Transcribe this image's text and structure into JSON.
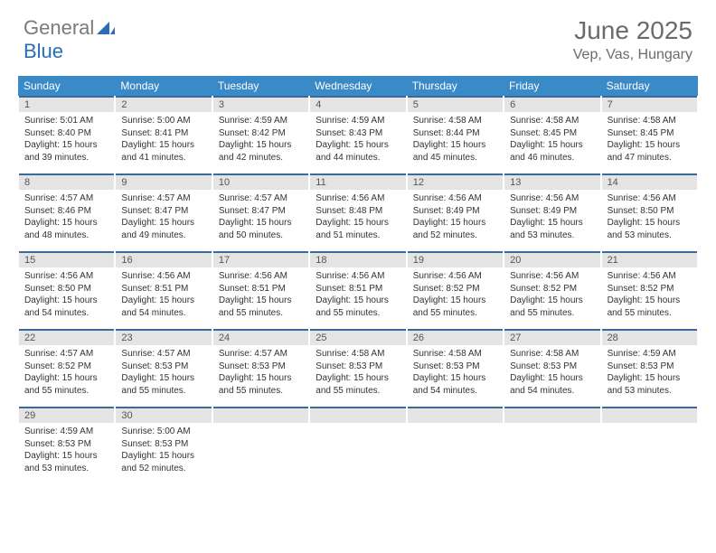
{
  "logo": {
    "text_gray": "General",
    "text_blue": "Blue",
    "shape_color": "#2a6db5"
  },
  "title": "June 2025",
  "location": "Vep, Vas, Hungary",
  "colors": {
    "header_bg": "#3a8ac8",
    "header_text": "#ffffff",
    "band_bg": "#e4e4e4",
    "band_border": "#3a6a9a",
    "daynum_color": "#555555",
    "cell_text": "#333333",
    "title_color": "#6b6b6b"
  },
  "day_headers": [
    "Sunday",
    "Monday",
    "Tuesday",
    "Wednesday",
    "Thursday",
    "Friday",
    "Saturday"
  ],
  "weeks": [
    [
      {
        "n": "1",
        "sr": "Sunrise: 5:01 AM",
        "ss": "Sunset: 8:40 PM",
        "dl": "Daylight: 15 hours and 39 minutes."
      },
      {
        "n": "2",
        "sr": "Sunrise: 5:00 AM",
        "ss": "Sunset: 8:41 PM",
        "dl": "Daylight: 15 hours and 41 minutes."
      },
      {
        "n": "3",
        "sr": "Sunrise: 4:59 AM",
        "ss": "Sunset: 8:42 PM",
        "dl": "Daylight: 15 hours and 42 minutes."
      },
      {
        "n": "4",
        "sr": "Sunrise: 4:59 AM",
        "ss": "Sunset: 8:43 PM",
        "dl": "Daylight: 15 hours and 44 minutes."
      },
      {
        "n": "5",
        "sr": "Sunrise: 4:58 AM",
        "ss": "Sunset: 8:44 PM",
        "dl": "Daylight: 15 hours and 45 minutes."
      },
      {
        "n": "6",
        "sr": "Sunrise: 4:58 AM",
        "ss": "Sunset: 8:45 PM",
        "dl": "Daylight: 15 hours and 46 minutes."
      },
      {
        "n": "7",
        "sr": "Sunrise: 4:58 AM",
        "ss": "Sunset: 8:45 PM",
        "dl": "Daylight: 15 hours and 47 minutes."
      }
    ],
    [
      {
        "n": "8",
        "sr": "Sunrise: 4:57 AM",
        "ss": "Sunset: 8:46 PM",
        "dl": "Daylight: 15 hours and 48 minutes."
      },
      {
        "n": "9",
        "sr": "Sunrise: 4:57 AM",
        "ss": "Sunset: 8:47 PM",
        "dl": "Daylight: 15 hours and 49 minutes."
      },
      {
        "n": "10",
        "sr": "Sunrise: 4:57 AM",
        "ss": "Sunset: 8:47 PM",
        "dl": "Daylight: 15 hours and 50 minutes."
      },
      {
        "n": "11",
        "sr": "Sunrise: 4:56 AM",
        "ss": "Sunset: 8:48 PM",
        "dl": "Daylight: 15 hours and 51 minutes."
      },
      {
        "n": "12",
        "sr": "Sunrise: 4:56 AM",
        "ss": "Sunset: 8:49 PM",
        "dl": "Daylight: 15 hours and 52 minutes."
      },
      {
        "n": "13",
        "sr": "Sunrise: 4:56 AM",
        "ss": "Sunset: 8:49 PM",
        "dl": "Daylight: 15 hours and 53 minutes."
      },
      {
        "n": "14",
        "sr": "Sunrise: 4:56 AM",
        "ss": "Sunset: 8:50 PM",
        "dl": "Daylight: 15 hours and 53 minutes."
      }
    ],
    [
      {
        "n": "15",
        "sr": "Sunrise: 4:56 AM",
        "ss": "Sunset: 8:50 PM",
        "dl": "Daylight: 15 hours and 54 minutes."
      },
      {
        "n": "16",
        "sr": "Sunrise: 4:56 AM",
        "ss": "Sunset: 8:51 PM",
        "dl": "Daylight: 15 hours and 54 minutes."
      },
      {
        "n": "17",
        "sr": "Sunrise: 4:56 AM",
        "ss": "Sunset: 8:51 PM",
        "dl": "Daylight: 15 hours and 55 minutes."
      },
      {
        "n": "18",
        "sr": "Sunrise: 4:56 AM",
        "ss": "Sunset: 8:51 PM",
        "dl": "Daylight: 15 hours and 55 minutes."
      },
      {
        "n": "19",
        "sr": "Sunrise: 4:56 AM",
        "ss": "Sunset: 8:52 PM",
        "dl": "Daylight: 15 hours and 55 minutes."
      },
      {
        "n": "20",
        "sr": "Sunrise: 4:56 AM",
        "ss": "Sunset: 8:52 PM",
        "dl": "Daylight: 15 hours and 55 minutes."
      },
      {
        "n": "21",
        "sr": "Sunrise: 4:56 AM",
        "ss": "Sunset: 8:52 PM",
        "dl": "Daylight: 15 hours and 55 minutes."
      }
    ],
    [
      {
        "n": "22",
        "sr": "Sunrise: 4:57 AM",
        "ss": "Sunset: 8:52 PM",
        "dl": "Daylight: 15 hours and 55 minutes."
      },
      {
        "n": "23",
        "sr": "Sunrise: 4:57 AM",
        "ss": "Sunset: 8:53 PM",
        "dl": "Daylight: 15 hours and 55 minutes."
      },
      {
        "n": "24",
        "sr": "Sunrise: 4:57 AM",
        "ss": "Sunset: 8:53 PM",
        "dl": "Daylight: 15 hours and 55 minutes."
      },
      {
        "n": "25",
        "sr": "Sunrise: 4:58 AM",
        "ss": "Sunset: 8:53 PM",
        "dl": "Daylight: 15 hours and 55 minutes."
      },
      {
        "n": "26",
        "sr": "Sunrise: 4:58 AM",
        "ss": "Sunset: 8:53 PM",
        "dl": "Daylight: 15 hours and 54 minutes."
      },
      {
        "n": "27",
        "sr": "Sunrise: 4:58 AM",
        "ss": "Sunset: 8:53 PM",
        "dl": "Daylight: 15 hours and 54 minutes."
      },
      {
        "n": "28",
        "sr": "Sunrise: 4:59 AM",
        "ss": "Sunset: 8:53 PM",
        "dl": "Daylight: 15 hours and 53 minutes."
      }
    ],
    [
      {
        "n": "29",
        "sr": "Sunrise: 4:59 AM",
        "ss": "Sunset: 8:53 PM",
        "dl": "Daylight: 15 hours and 53 minutes."
      },
      {
        "n": "30",
        "sr": "Sunrise: 5:00 AM",
        "ss": "Sunset: 8:53 PM",
        "dl": "Daylight: 15 hours and 52 minutes."
      },
      null,
      null,
      null,
      null,
      null
    ]
  ]
}
